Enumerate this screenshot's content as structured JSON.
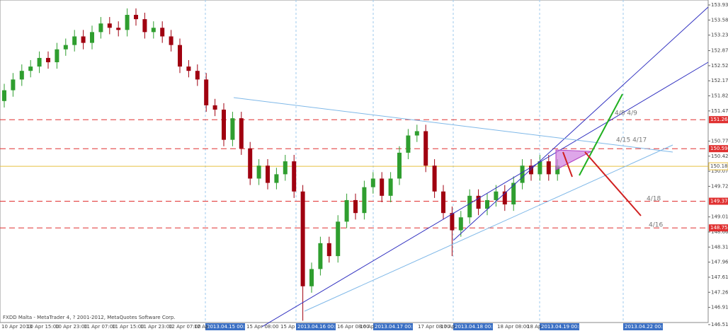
{
  "chart_data": {
    "type": "candlestick",
    "footer": "FXDD Malta - MetaTrader 4, ? 2001-2012, MetaQuotes Software Corp.",
    "ylim": [
      146.46,
      154.045
    ],
    "yticks": [
      {
        "value": 153.93,
        "label": "153.930"
      },
      {
        "value": 153.58,
        "label": "153.580"
      },
      {
        "value": 153.23,
        "label": "153.230"
      },
      {
        "value": 152.87,
        "label": "152.870"
      },
      {
        "value": 152.52,
        "label": "152.520"
      },
      {
        "value": 152.17,
        "label": "152.170"
      },
      {
        "value": 151.82,
        "label": "151.820"
      },
      {
        "value": 151.47,
        "label": "151.470"
      },
      {
        "value": 150.77,
        "label": "150.770"
      },
      {
        "value": 150.42,
        "label": "150.420"
      },
      {
        "value": 150.07,
        "label": "150.070"
      },
      {
        "value": 149.72,
        "label": "149.720"
      },
      {
        "value": 149.01,
        "label": "149.010"
      },
      {
        "value": 148.66,
        "label": "148.660"
      },
      {
        "value": 148.31,
        "label": "148.310"
      },
      {
        "value": 147.96,
        "label": "147.960"
      },
      {
        "value": 147.61,
        "label": "147.610"
      },
      {
        "value": 147.26,
        "label": "147.260"
      },
      {
        "value": 146.91,
        "label": "146.910"
      },
      {
        "value": 146.51,
        "label": "146.510"
      }
    ],
    "levels": [
      {
        "value": 151.267,
        "label": "151.267",
        "color": "#e03030"
      },
      {
        "value": 150.594,
        "label": "150.594",
        "color": "#e03030"
      },
      {
        "value": 149.374,
        "label": "149.374",
        "color": "#e03030"
      },
      {
        "value": 148.755,
        "label": "148.755",
        "color": "#e03030"
      }
    ],
    "current": {
      "value": 150.185,
      "label": "150.185",
      "color": "#e8c040"
    },
    "x_labels": [
      "10 Apr 2013",
      "10 Apr 15:00",
      "10 Apr 23:00",
      "11 Apr 07:00",
      "11 Apr 15:00",
      "11 Apr 23:00",
      "12 Apr 07:00",
      "12 Ap",
      "15 Apr 08:00",
      "15 Ap",
      "16 Apr 08:00",
      "16 Ap",
      "17 Apr 08:00",
      "17 Ap",
      "18 Apr 08:00",
      "18 Ap"
    ],
    "date_markers": [
      "2013.04.15 00:00",
      "2013.04.16 00:00",
      "2013.04.17 00:00",
      "2013.04.18 00:00",
      "2013.04.19 00:00",
      "2013.04.22 00:00"
    ],
    "annotations": [
      "4/8  4/9",
      "4/15  4/17",
      "4/18",
      "4/16"
    ],
    "colors": {
      "up": "#2f9e2f",
      "down": "#a00010"
    },
    "open": [
      151.7,
      151.95,
      152.2,
      152.4,
      152.5,
      152.7,
      152.6,
      152.9,
      153.0,
      153.2,
      153.05,
      153.3,
      153.5,
      153.4,
      153.35,
      153.7,
      153.6,
      153.3,
      153.4,
      153.2,
      153.0,
      152.5,
      152.4,
      152.2,
      151.6,
      151.5,
      150.8,
      151.3,
      150.6,
      149.9,
      150.2,
      149.8,
      150.0,
      150.3,
      149.6,
      147.4,
      147.8,
      148.4,
      148.1,
      148.9,
      149.4,
      149.1,
      149.7,
      149.9,
      149.5,
      149.9,
      150.5,
      150.9,
      151.0,
      150.2,
      149.6,
      149.1,
      148.7,
      149.0,
      149.5,
      149.2,
      149.4,
      149.6,
      149.3,
      149.8,
      150.2,
      150.0,
      150.3,
      150.0
    ],
    "high": [
      152.1,
      152.35,
      152.55,
      152.65,
      152.85,
      152.85,
      153.05,
      153.15,
      153.35,
      153.35,
      153.45,
      153.65,
      153.65,
      153.55,
      153.85,
      153.85,
      153.75,
      153.55,
      153.55,
      153.35,
      153.15,
      152.65,
      152.55,
      152.35,
      151.75,
      151.65,
      151.45,
      151.45,
      150.75,
      150.35,
      150.35,
      150.15,
      150.45,
      150.45,
      149.75,
      147.95,
      148.55,
      148.55,
      149.05,
      149.55,
      149.55,
      149.85,
      150.05,
      150.05,
      150.05,
      150.65,
      151.05,
      151.15,
      151.15,
      150.35,
      149.75,
      149.25,
      149.15,
      149.65,
      149.65,
      149.55,
      149.75,
      149.75,
      149.95,
      150.35,
      150.35,
      150.45,
      150.45,
      150.35
    ],
    "low": [
      151.55,
      151.8,
      152.05,
      152.25,
      152.35,
      152.45,
      152.45,
      152.75,
      152.85,
      152.9,
      152.9,
      153.15,
      153.25,
      153.2,
      153.2,
      153.45,
      153.15,
      153.15,
      153.05,
      152.85,
      152.35,
      152.25,
      152.05,
      151.45,
      151.35,
      150.65,
      150.65,
      150.45,
      149.75,
      149.75,
      149.65,
      149.65,
      149.85,
      149.45,
      146.6,
      147.25,
      147.65,
      147.95,
      147.95,
      148.75,
      148.95,
      148.95,
      149.55,
      149.35,
      149.35,
      149.75,
      150.35,
      150.75,
      150.05,
      149.45,
      148.95,
      148.1,
      148.55,
      148.85,
      149.05,
      149.05,
      149.25,
      149.15,
      149.15,
      149.65,
      149.85,
      149.85,
      149.85,
      149.85
    ],
    "close": [
      151.95,
      152.2,
      152.4,
      152.5,
      152.7,
      152.6,
      152.9,
      153.0,
      153.2,
      153.05,
      153.3,
      153.5,
      153.4,
      153.35,
      153.7,
      153.6,
      153.3,
      153.4,
      153.2,
      153.0,
      152.5,
      152.4,
      152.2,
      151.6,
      151.5,
      150.8,
      151.3,
      150.6,
      149.9,
      150.2,
      149.8,
      150.0,
      150.3,
      149.6,
      147.4,
      147.8,
      148.4,
      148.1,
      148.9,
      149.4,
      149.1,
      149.7,
      149.9,
      149.5,
      149.9,
      150.5,
      150.9,
      151.0,
      150.2,
      149.6,
      149.1,
      148.7,
      149.0,
      149.5,
      149.2,
      149.4,
      149.6,
      149.3,
      149.8,
      150.2,
      150.0,
      150.3,
      150.0,
      150.2
    ]
  }
}
